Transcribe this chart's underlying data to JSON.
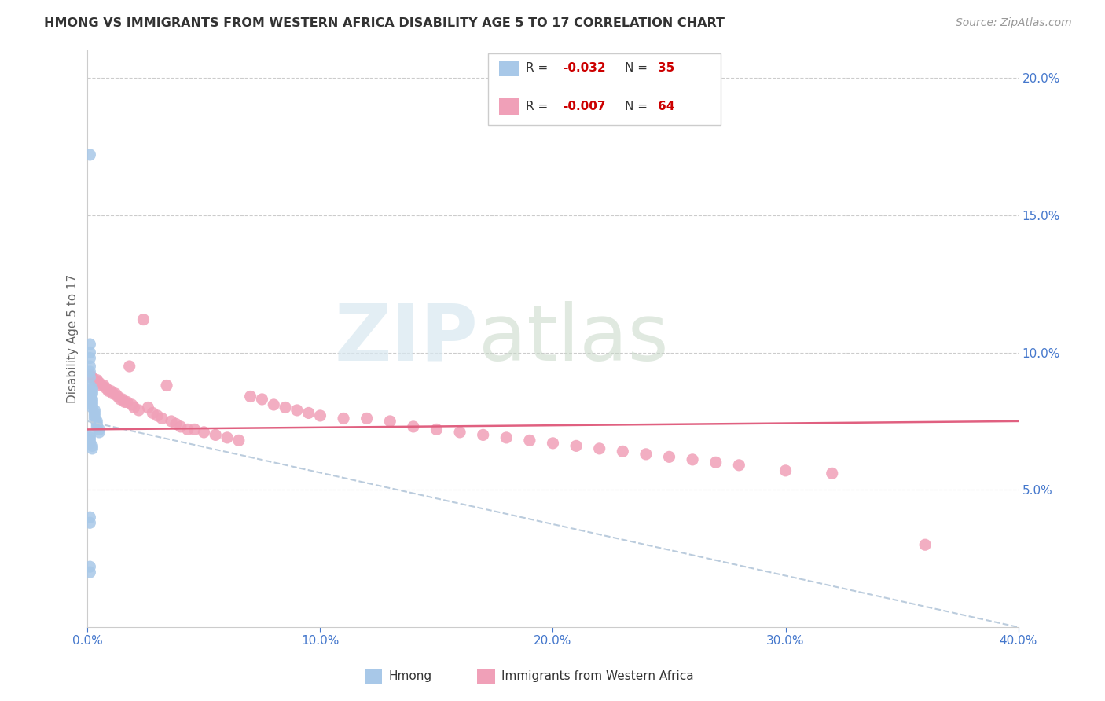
{
  "title": "HMONG VS IMMIGRANTS FROM WESTERN AFRICA DISABILITY AGE 5 TO 17 CORRELATION CHART",
  "source": "Source: ZipAtlas.com",
  "ylabel": "Disability Age 5 to 17",
  "xlim": [
    0.0,
    0.4
  ],
  "ylim": [
    0.0,
    0.21
  ],
  "yticks": [
    0.0,
    0.05,
    0.1,
    0.15,
    0.2
  ],
  "xticks": [
    0.0,
    0.1,
    0.2,
    0.3,
    0.4
  ],
  "hmong_color": "#a8c8e8",
  "wafr_color": "#f0a0b8",
  "hmong_line_color": "#aaccee",
  "wafr_line_color": "#e06080",
  "grid_color": "#cccccc",
  "legend_bottom_label1": "Hmong",
  "legend_bottom_label2": "Immigrants from Western Africa",
  "watermark_zip": "ZIP",
  "watermark_atlas": "atlas",
  "hmong_x": [
    0.001,
    0.001,
    0.001,
    0.001,
    0.001,
    0.001,
    0.001,
    0.001,
    0.001,
    0.002,
    0.002,
    0.002,
    0.002,
    0.002,
    0.002,
    0.002,
    0.003,
    0.003,
    0.003,
    0.003,
    0.004,
    0.004,
    0.004,
    0.005,
    0.005,
    0.001,
    0.001,
    0.001,
    0.001,
    0.002,
    0.002,
    0.001,
    0.001,
    0.001,
    0.001
  ],
  "hmong_y": [
    0.172,
    0.103,
    0.1,
    0.098,
    0.095,
    0.093,
    0.091,
    0.088,
    0.085,
    0.087,
    0.086,
    0.085,
    0.083,
    0.082,
    0.081,
    0.08,
    0.079,
    0.078,
    0.077,
    0.076,
    0.075,
    0.074,
    0.073,
    0.072,
    0.071,
    0.07,
    0.069,
    0.068,
    0.067,
    0.066,
    0.065,
    0.04,
    0.038,
    0.022,
    0.02
  ],
  "wafr_x": [
    0.001,
    0.002,
    0.003,
    0.004,
    0.005,
    0.006,
    0.007,
    0.008,
    0.009,
    0.01,
    0.011,
    0.012,
    0.013,
    0.014,
    0.015,
    0.016,
    0.017,
    0.018,
    0.019,
    0.02,
    0.022,
    0.024,
    0.026,
    0.028,
    0.03,
    0.032,
    0.034,
    0.036,
    0.038,
    0.04,
    0.043,
    0.046,
    0.05,
    0.055,
    0.06,
    0.065,
    0.07,
    0.075,
    0.08,
    0.085,
    0.09,
    0.095,
    0.1,
    0.11,
    0.12,
    0.13,
    0.14,
    0.15,
    0.16,
    0.17,
    0.18,
    0.19,
    0.2,
    0.21,
    0.22,
    0.23,
    0.24,
    0.25,
    0.26,
    0.27,
    0.28,
    0.3,
    0.32,
    0.36
  ],
  "wafr_y": [
    0.092,
    0.091,
    0.09,
    0.09,
    0.089,
    0.088,
    0.088,
    0.087,
    0.086,
    0.086,
    0.085,
    0.085,
    0.084,
    0.083,
    0.083,
    0.082,
    0.082,
    0.095,
    0.081,
    0.08,
    0.079,
    0.112,
    0.08,
    0.078,
    0.077,
    0.076,
    0.088,
    0.075,
    0.074,
    0.073,
    0.072,
    0.072,
    0.071,
    0.07,
    0.069,
    0.068,
    0.084,
    0.083,
    0.081,
    0.08,
    0.079,
    0.078,
    0.077,
    0.076,
    0.076,
    0.075,
    0.073,
    0.072,
    0.071,
    0.07,
    0.069,
    0.068,
    0.067,
    0.066,
    0.065,
    0.064,
    0.063,
    0.062,
    0.061,
    0.06,
    0.059,
    0.057,
    0.056,
    0.03
  ],
  "hmong_trend_x": [
    0.0,
    0.4
  ],
  "hmong_trend_y": [
    0.075,
    0.0
  ],
  "wafr_trend_x": [
    0.0,
    0.4
  ],
  "wafr_trend_y": [
    0.072,
    0.075
  ]
}
